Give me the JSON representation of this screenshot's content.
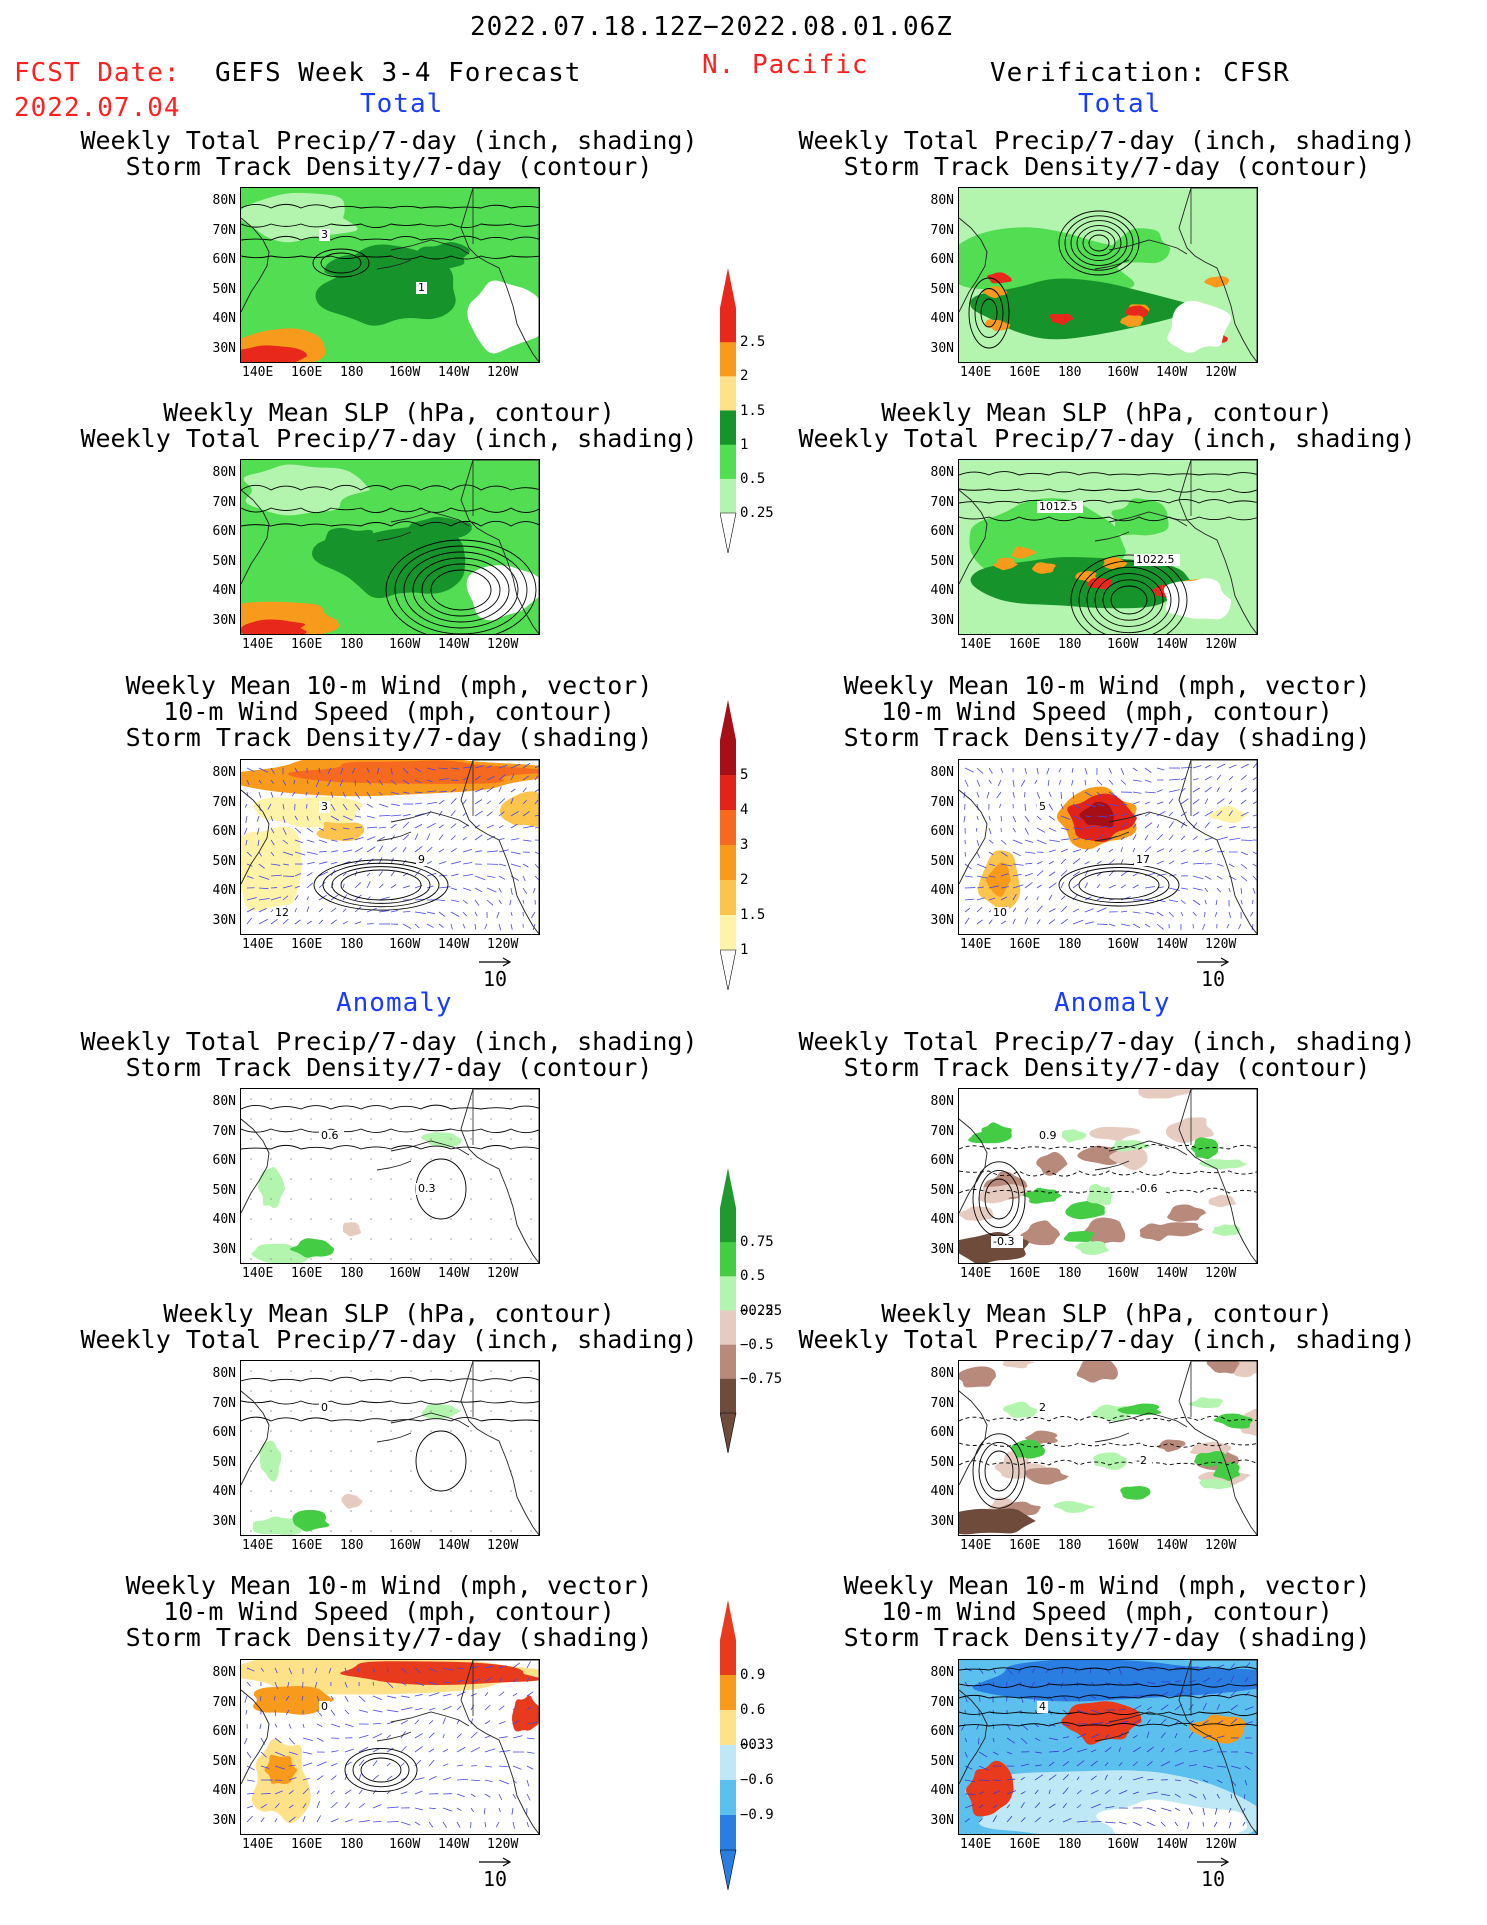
{
  "header": {
    "period": "2022.07.18.12Z−2022.08.01.06Z",
    "fcst_label": "FCST Date:",
    "fcst_date": "2022.07.04",
    "model": "GEFS Week 3-4 Forecast",
    "region": "N. Pacific",
    "verification": "Verification: CFSR"
  },
  "sections": {
    "total": "Total",
    "anomaly": "Anomaly"
  },
  "titles": {
    "precip_storm": [
      "Weekly Total Precip/7-day (inch, shading)",
      "Storm Track Density/7-day (contour)"
    ],
    "slp_precip": [
      "Weekly Mean SLP (hPa, contour)",
      "Weekly Total Precip/7-day (inch, shading)"
    ],
    "wind": [
      "Weekly Mean 10-m Wind (mph, vector)",
      "10-m Wind Speed (mph, contour)",
      "Storm Track Density/7-day (shading)"
    ]
  },
  "axes": {
    "lat_labels": [
      "80N",
      "70N",
      "60N",
      "50N",
      "40N",
      "30N"
    ],
    "lon_labels": [
      "140E",
      "160E",
      "180",
      "160W",
      "140W",
      "120W"
    ]
  },
  "vector_ref": "10",
  "contour_labels": {
    "total_fcst_precip_storm": [
      "3",
      "1"
    ],
    "total_ver_slp": [
      "1012.5",
      "1022.5"
    ],
    "total_fcst_wind": [
      "3",
      "9",
      "12"
    ],
    "total_ver_wind": [
      "5",
      "17",
      "10"
    ],
    "anom_fcst_precip_storm": [
      "0.6",
      "0.3"
    ],
    "anom_ver_precip_storm": [
      "0.9",
      "-0.6",
      "-0.3"
    ],
    "anom_fcst_slp": [
      "0"
    ],
    "anom_ver_slp": [
      "2",
      "-2"
    ],
    "anom_fcst_wind": [
      "0"
    ],
    "anom_ver_wind": [
      "4"
    ]
  },
  "colorbars": {
    "precip_total": {
      "labels": [
        "2.5",
        "2",
        "1.5",
        "1",
        "0.5",
        "0.25"
      ],
      "colors": [
        "#e8281a",
        "#f89a1c",
        "#fde28a",
        "#17932b",
        "#52dd52",
        "#b3f4ae"
      ]
    },
    "storm_total": {
      "labels": [
        "5",
        "4",
        "3",
        "2",
        "1.5",
        "1"
      ],
      "colors": [
        "#a50f15",
        "#e2231a",
        "#f66a1f",
        "#f89a1c",
        "#fbc44c",
        "#fef3a8"
      ]
    },
    "precip_anom": {
      "labels": [
        "0.75",
        "0.5",
        "0.25",
        "−0.25",
        "−0.5",
        "−0.75"
      ],
      "colors": [
        "#1f9a2e",
        "#44cc44",
        "#b3f4ae",
        "#e6cbc0",
        "#b88a7c",
        "#6f4b3c"
      ]
    },
    "storm_anom": {
      "labels": [
        "0.9",
        "0.6",
        "0.3",
        "−0.3",
        "−0.6",
        "−0.9"
      ],
      "colors": [
        "#e83a1c",
        "#f89a1c",
        "#fde28a",
        "#bfe8f6",
        "#5cc0ee",
        "#2a7de1"
      ]
    }
  }
}
